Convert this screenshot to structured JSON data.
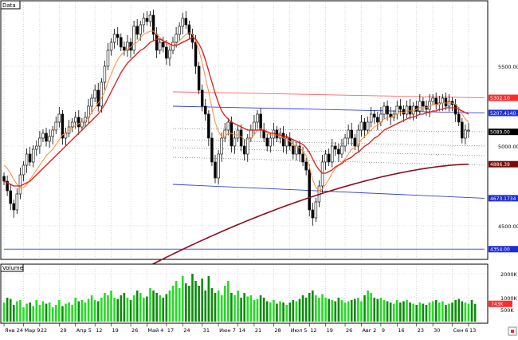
{
  "panels": {
    "price_title": "Data",
    "volume_title": "Volume"
  },
  "price_axis": {
    "ticks": [
      {
        "label": "5500.00",
        "value": 5500
      },
      {
        "label": "5000.00",
        "value": 5000
      },
      {
        "label": "4500.00",
        "value": 4500
      }
    ],
    "tags": [
      {
        "label": "5302.10",
        "value": 5302.1,
        "bg": "#ff2a2a",
        "fg": "#ffffff"
      },
      {
        "label": "5207.4140",
        "value": 5207.414,
        "bg": "#1d2bd6",
        "fg": "#ffffff"
      },
      {
        "label": "5089.00",
        "value": 5089,
        "bg": "#000000",
        "fg": "#ffffff"
      },
      {
        "label": "4886.39",
        "value": 4886.39,
        "bg": "#7a0a0a",
        "fg": "#ffffff"
      },
      {
        "label": "4673.1734",
        "value": 4673.1734,
        "bg": "#1d2bd6",
        "fg": "#ffffff"
      },
      {
        "label": "4354.00",
        "value": 4354,
        "bg": "#1d2bd6",
        "fg": "#ffffff"
      }
    ]
  },
  "volume_axis": {
    "ticks": [
      {
        "label": "2000K",
        "value": 2000
      },
      {
        "label": "1000K",
        "value": 1000
      },
      {
        "label": "500K",
        "value": 500
      }
    ],
    "tag": {
      "label": "743K",
      "value": 743,
      "bg": "#ff2a2a",
      "fg": "#ffffff"
    }
  },
  "x_axis": {
    "labels": [
      "Янв 24",
      "Мар 9",
      "22",
      "29",
      "Апр 5",
      "12",
      "19",
      "26",
      "Май 4",
      "17",
      "24",
      "31",
      "Июн 7",
      "14",
      "21",
      "28",
      "Июл 5",
      "12",
      "19",
      "26",
      "Авг 2",
      "9",
      "16",
      "23",
      "30",
      "Сен 6",
      "13"
    ]
  },
  "chart_data": [
    {
      "type": "candlestick",
      "title": "Data",
      "ylim": [
        4300,
        5900
      ],
      "x_count": 144,
      "candles_close": [
        4780,
        4720,
        4640,
        4600,
        4700,
        4820,
        4880,
        4950,
        4900,
        4980,
        5000,
        5050,
        5080,
        5030,
        5060,
        5100,
        5150,
        5200,
        5050,
        5080,
        5120,
        5150,
        5180,
        5120,
        5150,
        5180,
        5250,
        5300,
        5350,
        5250,
        5400,
        5500,
        5600,
        5650,
        5700,
        5680,
        5620,
        5600,
        5650,
        5600,
        5750,
        5700,
        5760,
        5800,
        5780,
        5820,
        5700,
        5600,
        5650,
        5620,
        5550,
        5600,
        5650,
        5700,
        5750,
        5800,
        5760,
        5700,
        5650,
        5500,
        5350,
        5250,
        5200,
        5050,
        4900,
        4800,
        4950,
        5050,
        5100,
        5150,
        5000,
        5050,
        5100,
        5000,
        4950,
        5050,
        5100,
        5150,
        5200,
        5100,
        5050,
        5000,
        5050,
        5100,
        5050,
        5080,
        5000,
        5050,
        5000,
        4950,
        5000,
        4950,
        4900,
        4850,
        4600,
        4550,
        4650,
        4750,
        4900,
        4950,
        4900,
        5000,
        4980,
        4950,
        5000,
        5050,
        5100,
        5050,
        5000,
        5100,
        5150,
        5100,
        5150,
        5200,
        5180,
        5150,
        5200,
        5250,
        5200,
        5180,
        5200,
        5250,
        5230,
        5200,
        5250,
        5200,
        5250,
        5220,
        5280,
        5250,
        5230,
        5280,
        5300,
        5260,
        5270,
        5300,
        5250,
        5280,
        5260,
        5200,
        5150,
        5050,
        5100,
        5100
      ],
      "sma_fast": [
        4880,
        4860,
        4830,
        4790,
        4760,
        4740,
        4740,
        4760,
        4790,
        4820,
        4850,
        4880,
        4910,
        4940,
        4960,
        4980,
        5010,
        5040,
        5070,
        5080,
        5100,
        5110,
        5130,
        5140,
        5150,
        5160,
        5180,
        5210,
        5240,
        5270,
        5300,
        5340,
        5400,
        5450,
        5500,
        5540,
        5570,
        5590,
        5610,
        5620,
        5640,
        5650,
        5680,
        5700,
        5710,
        5720,
        5720,
        5700,
        5680,
        5660,
        5640,
        5630,
        5630,
        5640,
        5660,
        5680,
        5700,
        5710,
        5700,
        5660,
        5600,
        5520,
        5430,
        5340,
        5240,
        5150,
        5090,
        5060,
        5060,
        5080,
        5080,
        5070,
        5070,
        5060,
        5040,
        5040,
        5050,
        5070,
        5100,
        5110,
        5100,
        5080,
        5070,
        5070,
        5070,
        5060,
        5050,
        5040,
        5030,
        5010,
        5000,
        4990,
        4970,
        4940,
        4870,
        4790,
        4740,
        4720,
        4730,
        4760,
        4790,
        4830,
        4860,
        4880,
        4900,
        4920,
        4950,
        4980,
        4990,
        5010,
        5040,
        5060,
        5080,
        5100,
        5120,
        5130,
        5150,
        5170,
        5180,
        5180,
        5190,
        5200,
        5210,
        5210,
        5220,
        5220,
        5220,
        5230,
        5240,
        5240,
        5240,
        5250,
        5260,
        5260,
        5260,
        5270,
        5270,
        5270,
        5270,
        5260,
        5240,
        5200,
        5170,
        5150
      ],
      "sma_mid": [
        4780,
        4770,
        4760,
        4750,
        4750,
        4750,
        4760,
        4770,
        4780,
        4800,
        4820,
        4840,
        4860,
        4880,
        4900,
        4920,
        4940,
        4960,
        4980,
        5000,
        5020,
        5040,
        5060,
        5080,
        5100,
        5120,
        5140,
        5160,
        5180,
        5200,
        5230,
        5260,
        5300,
        5340,
        5380,
        5420,
        5460,
        5490,
        5520,
        5540,
        5560,
        5580,
        5600,
        5610,
        5630,
        5650,
        5660,
        5670,
        5670,
        5660,
        5650,
        5640,
        5630,
        5630,
        5640,
        5650,
        5660,
        5670,
        5680,
        5670,
        5640,
        5600,
        5540,
        5470,
        5400,
        5330,
        5270,
        5220,
        5190,
        5170,
        5150,
        5140,
        5130,
        5120,
        5110,
        5100,
        5100,
        5100,
        5100,
        5100,
        5100,
        5090,
        5080,
        5080,
        5070,
        5070,
        5060,
        5060,
        5050,
        5040,
        5030,
        5020,
        5010,
        4990,
        4960,
        4920,
        4880,
        4850,
        4830,
        4830,
        4840,
        4850,
        4870,
        4880,
        4890,
        4910,
        4920,
        4930,
        4950,
        4960,
        4980,
        5000,
        5010,
        5030,
        5050,
        5060,
        5080,
        5100,
        5110,
        5120,
        5130,
        5140,
        5150,
        5160,
        5170,
        5180,
        5180,
        5190,
        5200,
        5200,
        5210,
        5210,
        5220,
        5220,
        5230,
        5230,
        5240,
        5240,
        5240,
        5240,
        5230,
        5220,
        5210,
        5200
      ],
      "sma_slow": {
        "from_index": 40,
        "from_value": 4200,
        "to_index": 143,
        "to_value": 4886
      },
      "levels": [
        {
          "name": "upper-red-line",
          "from_index": 52,
          "from_value": 5340,
          "to_index": 143,
          "to_value": 5302
        },
        {
          "name": "blue-channel-top",
          "from_index": 52,
          "from_value": 5250,
          "to_index": 143,
          "to_value": 5207
        },
        {
          "name": "blue-channel-bottom",
          "from_index": 52,
          "from_value": 4760,
          "to_index": 143,
          "to_value": 4673
        },
        {
          "name": "support-line",
          "from_index": 0,
          "from_value": 4354,
          "to_index": 143,
          "to_value": 4354
        }
      ]
    },
    {
      "type": "bar",
      "title": "Volume",
      "ylim": [
        0,
        2300
      ],
      "values": [
        800,
        1000,
        950,
        700,
        850,
        900,
        600,
        750,
        800,
        650,
        900,
        700,
        850,
        750,
        800,
        600,
        700,
        900,
        650,
        750,
        800,
        700,
        1000,
        850,
        900,
        800,
        950,
        1100,
        900,
        850,
        1000,
        1200,
        1100,
        1300,
        1000,
        950,
        1100,
        1200,
        1000,
        900,
        1100,
        1300,
        1200,
        1000,
        1050,
        1400,
        1300,
        1200,
        1100,
        1000,
        1150,
        1300,
        1500,
        1700,
        1400,
        1900,
        1600,
        1500,
        2000,
        1700,
        1500,
        1800,
        1300,
        1900,
        1400,
        1200,
        1300,
        1100,
        1500,
        1700,
        1200,
        1100,
        1300,
        1000,
        1200,
        1050,
        1100,
        900,
        950,
        1100,
        1000,
        850,
        800,
        900,
        750,
        850,
        800,
        700,
        800,
        900,
        850,
        950,
        1100,
        1000,
        1200,
        1300,
        1100,
        1000,
        1150,
        1000,
        950,
        900,
        850,
        1000,
        900,
        800,
        850,
        900,
        950,
        1000,
        850,
        1100,
        1300,
        1200,
        1000,
        950,
        1000,
        900,
        850,
        800,
        750,
        900,
        800,
        850,
        900,
        800,
        750,
        700,
        800,
        750,
        700,
        800,
        850,
        900,
        800,
        850,
        700,
        750,
        800,
        900,
        950,
        850,
        800,
        750,
        900,
        743
      ]
    }
  ]
}
